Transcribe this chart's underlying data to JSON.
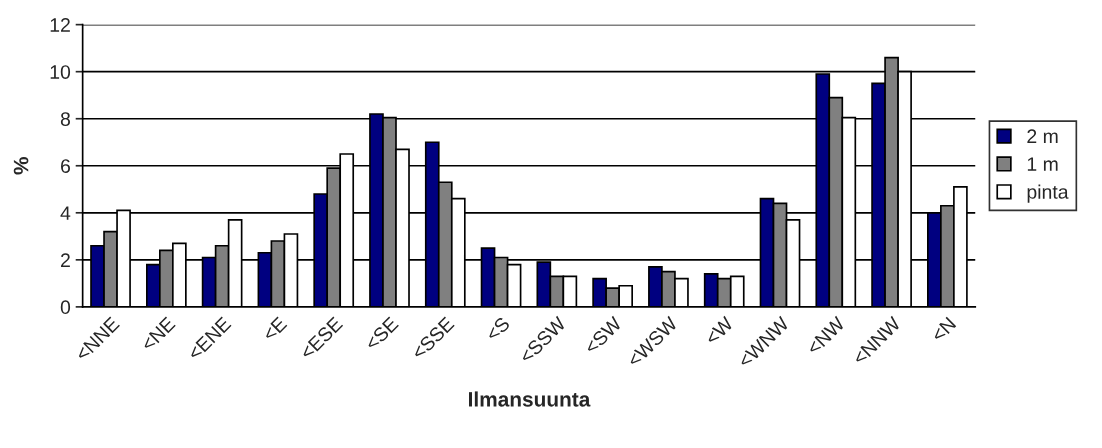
{
  "chart_data": {
    "type": "bar",
    "xlabel": "Ilmansuunta",
    "ylabel": "%",
    "categories": [
      "<NNE",
      "<NE",
      "<ENE",
      "<E",
      "<ESE",
      "<SE",
      "<SSE",
      "<S",
      "<SSW",
      "<SW",
      "<WSW",
      "<W",
      "<WNW",
      "<NW",
      "<NNW",
      "<N"
    ],
    "series": [
      {
        "name": "2 m",
        "color": "#000080",
        "values": [
          2.6,
          1.8,
          2.1,
          2.3,
          4.8,
          8.2,
          7.0,
          2.5,
          1.9,
          1.2,
          1.7,
          1.4,
          4.6,
          9.9,
          9.5,
          4.0
        ]
      },
      {
        "name": "1 m",
        "color": "#808080",
        "values": [
          3.2,
          2.4,
          2.6,
          2.8,
          5.9,
          8.05,
          5.3,
          2.1,
          1.3,
          0.8,
          1.5,
          1.2,
          4.4,
          8.9,
          10.6,
          4.3
        ]
      },
      {
        "name": "pinta",
        "color": "#ffffff",
        "values": [
          4.1,
          2.7,
          3.7,
          3.1,
          6.5,
          6.7,
          4.6,
          1.8,
          1.3,
          0.9,
          1.2,
          1.3,
          3.7,
          8.05,
          10.0,
          5.1
        ]
      }
    ],
    "ylim": [
      0,
      12
    ],
    "yticks": [
      0,
      2,
      4,
      6,
      8,
      10,
      12
    ],
    "grid": "y",
    "legend": "right"
  }
}
